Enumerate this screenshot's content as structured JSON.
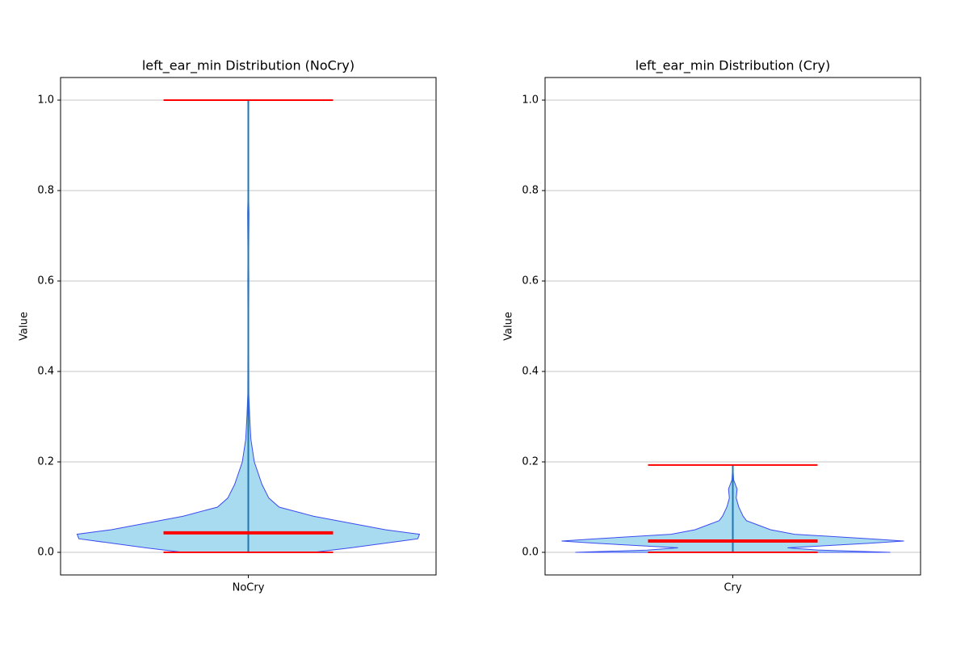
{
  "chart_data": [
    {
      "type": "violin",
      "title": "left_ear_min Distribution (NoCry)",
      "ylabel": "Value",
      "categories": [
        "NoCry"
      ],
      "ylim": [
        -0.05,
        1.05
      ],
      "yticks": [
        {
          "value": 0,
          "label": "0.0"
        },
        {
          "value": 0.2,
          "label": "0.2"
        },
        {
          "value": 0.4,
          "label": "0.4"
        },
        {
          "value": 0.6,
          "label": "0.6"
        },
        {
          "value": 0.8,
          "label": "0.8"
        },
        {
          "value": 1,
          "label": "1.0"
        }
      ],
      "grid": true,
      "min": 0,
      "max": 1.0,
      "median": 0.043,
      "kde_y": [
        0,
        0.01,
        0.03,
        0.04,
        0.05,
        0.08,
        0.1,
        0.12,
        0.15,
        0.2,
        0.25,
        0.3,
        0.35,
        0.5,
        0.6,
        0.65,
        0.75,
        0.8,
        1.0
      ],
      "kde_width": [
        0.38,
        0.6,
        0.99,
        1.0,
        0.8,
        0.38,
        0.18,
        0.12,
        0.08,
        0.035,
        0.015,
        0.008,
        0.003,
        0.002,
        0.003,
        0.002,
        0.004,
        0.001,
        0
      ],
      "body_color": "#a8dbef",
      "edge_color": "#3b4cf0",
      "line_color": "#1f77b4",
      "stat_color": "#ff0000"
    },
    {
      "type": "violin",
      "title": "left_ear_min Distribution (Cry)",
      "ylabel": "Value",
      "categories": [
        "Cry"
      ],
      "ylim": [
        -0.05,
        1.05
      ],
      "yticks": [
        {
          "value": 0,
          "label": "0.0"
        },
        {
          "value": 0.2,
          "label": "0.2"
        },
        {
          "value": 0.4,
          "label": "0.4"
        },
        {
          "value": 0.6,
          "label": "0.6"
        },
        {
          "value": 0.8,
          "label": "0.8"
        },
        {
          "value": 1,
          "label": "1.0"
        }
      ],
      "grid": true,
      "min": 0,
      "max": 0.193,
      "median": 0.025,
      "kde_y": [
        0,
        0.005,
        0.01,
        0.02,
        0.025,
        0.03,
        0.04,
        0.05,
        0.06,
        0.07,
        0.08,
        0.1,
        0.12,
        0.14,
        0.16,
        0.193
      ],
      "kde_width": [
        0.92,
        0.5,
        0.32,
        0.8,
        1.0,
        0.8,
        0.36,
        0.22,
        0.15,
        0.08,
        0.06,
        0.035,
        0.02,
        0.025,
        0.005,
        0
      ],
      "body_color": "#a8dbef",
      "edge_color": "#3b4cf0",
      "line_color": "#1f77b4",
      "stat_color": "#ff0000"
    }
  ]
}
